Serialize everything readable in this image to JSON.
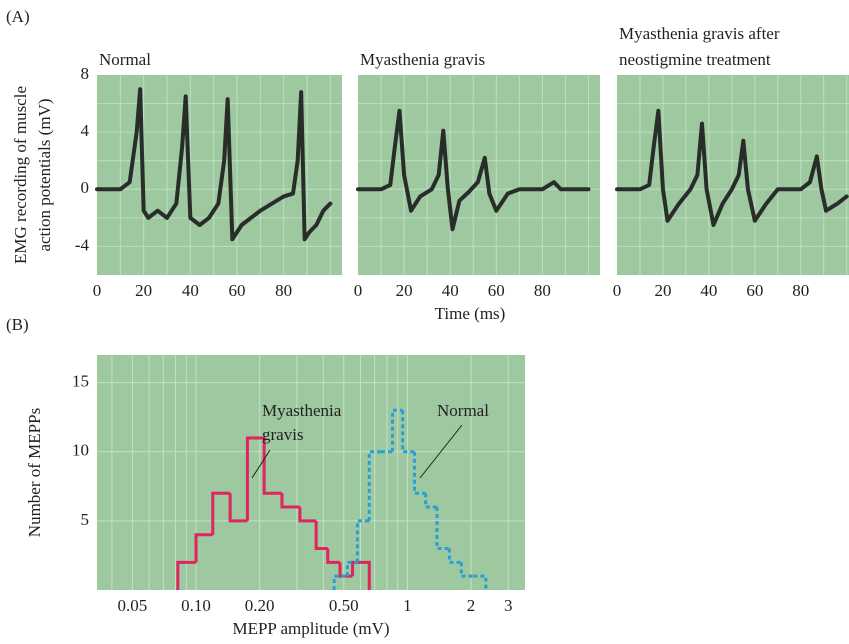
{
  "panel_labels": [
    "(A)",
    "(B)"
  ],
  "chart_data": [
    {
      "type": "line",
      "title": "Normal",
      "y_label": [
        "EMG recording of muscle",
        "action potentials (mV)"
      ],
      "background": "#9dc8a0",
      "grid_color": "#bfdfc1",
      "xlim": [
        0,
        105
      ],
      "ylim": [
        -6,
        8
      ],
      "xticks": [
        0,
        20,
        40,
        60,
        80
      ],
      "yticks": [
        -4,
        0,
        4,
        8
      ],
      "xgrid": [
        10,
        20,
        30,
        40,
        50,
        60,
        70,
        80,
        90,
        100
      ],
      "ygrid": [
        -4,
        -2,
        0,
        2,
        4,
        6
      ],
      "x": [
        0,
        5,
        10,
        14,
        17,
        18.5,
        20,
        22,
        26,
        30,
        34,
        36.5,
        38,
        40,
        44,
        48,
        52,
        54.5,
        56,
        58,
        62,
        70,
        80,
        84,
        86,
        87.5,
        89,
        91,
        94,
        97,
        100
      ],
      "series": [
        {
          "color": "#1c1c1c",
          "values": [
            0,
            0,
            0,
            0.5,
            4,
            7,
            -1.5,
            -2,
            -1.5,
            -2,
            -1,
            3,
            6.5,
            -2,
            -2.5,
            -2,
            -1,
            2,
            6.3,
            -3.5,
            -2.5,
            -1.5,
            -0.5,
            -0.3,
            2,
            6.8,
            -3.5,
            -3,
            -2.5,
            -1.5,
            -1
          ]
        }
      ]
    },
    {
      "type": "line",
      "title": "Myasthenia gravis",
      "x_label": "Time (ms)",
      "background": "#9dc8a0",
      "grid_color": "#bfdfc1",
      "xlim": [
        0,
        105
      ],
      "ylim": [
        -6,
        8
      ],
      "xticks": [
        0,
        20,
        40,
        60,
        80
      ],
      "xgrid": [
        10,
        20,
        30,
        40,
        50,
        60,
        70,
        80,
        90,
        100
      ],
      "ygrid": [
        -4,
        -2,
        0,
        2,
        4,
        6
      ],
      "x": [
        0,
        5,
        10,
        14,
        16,
        18,
        20,
        23,
        27,
        32,
        35,
        37,
        39,
        41,
        44,
        48,
        52,
        55,
        57,
        60,
        65,
        70,
        80,
        85,
        88,
        92,
        100
      ],
      "series": [
        {
          "color": "#1c1c1c",
          "values": [
            0,
            0,
            0,
            0.3,
            3,
            5.5,
            1,
            -1.5,
            -0.5,
            0,
            1,
            4.1,
            0,
            -2.8,
            -0.8,
            -0.2,
            0.5,
            2.2,
            -0.3,
            -1.5,
            -0.3,
            0,
            0,
            0.5,
            0,
            0,
            0
          ]
        }
      ]
    },
    {
      "type": "line",
      "title": [
        "Myasthenia gravis after",
        "neostigmine treatment"
      ],
      "background": "#9dc8a0",
      "grid_color": "#bfdfc1",
      "xlim": [
        0,
        101
      ],
      "ylim": [
        -6,
        8
      ],
      "xticks": [
        0,
        20,
        40,
        60,
        80
      ],
      "xgrid": [
        10,
        20,
        30,
        40,
        50,
        60,
        70,
        80,
        90,
        100
      ],
      "ygrid": [
        -4,
        -2,
        0,
        2,
        4,
        6
      ],
      "x": [
        0,
        5,
        10,
        14,
        16,
        18,
        20,
        22,
        27,
        32,
        35,
        37,
        39,
        42,
        46,
        50,
        53,
        55,
        57,
        60,
        65,
        70,
        80,
        84,
        87,
        89,
        91,
        96,
        100
      ],
      "series": [
        {
          "color": "#1c1c1c",
          "values": [
            0,
            0,
            0,
            0.3,
            3,
            5.5,
            0,
            -2.2,
            -1,
            0,
            1,
            4.6,
            0,
            -2.5,
            -1,
            0,
            1,
            3.4,
            0,
            -2.2,
            -1,
            0,
            0,
            0.5,
            2.3,
            0,
            -1.5,
            -1,
            -0.5
          ]
        }
      ]
    },
    {
      "type": "histogram",
      "x_label": "MEPP amplitude (mV)",
      "y_label": "Number of MEPPs",
      "background": "#9dc8a0",
      "grid_color": "#c4e2c5",
      "xscale": "log",
      "xlim": [
        0.034,
        3.6
      ],
      "ylim": [
        0,
        17
      ],
      "xticks": [
        0.05,
        {
          "value": 0.1,
          "label": "0.10"
        },
        {
          "value": 0.2,
          "label": "0.20"
        },
        {
          "value": 0.5,
          "label": "0.50"
        },
        1,
        2,
        3
      ],
      "yticks": [
        5,
        10,
        15
      ],
      "xgrid": [
        0.04,
        0.05,
        0.06,
        0.07,
        0.08,
        0.09,
        0.1,
        0.2,
        0.3,
        0.4,
        0.5,
        0.6,
        0.7,
        0.8,
        0.9,
        1,
        2,
        3
      ],
      "ygrid": [
        5,
        10,
        15
      ],
      "series": [
        {
          "color": "#e0245e",
          "style": "solid",
          "bins": [
            0.082,
            0.1,
            0.12,
            0.145,
            0.175,
            0.21,
            0.255,
            0.31,
            0.37,
            0.42,
            0.48,
            0.55,
            0.66
          ],
          "values": [
            2,
            4,
            7,
            5,
            11,
            7,
            6,
            5,
            3,
            2,
            1,
            2
          ]
        },
        {
          "color": "#2a9fd6",
          "style": "dotted",
          "bins": [
            0.45,
            0.52,
            0.58,
            0.66,
            0.75,
            0.85,
            0.95,
            1.08,
            1.22,
            1.38,
            1.58,
            1.8,
            2.05,
            2.35
          ],
          "values": [
            1,
            2,
            5,
            10,
            10,
            13,
            10,
            7,
            6,
            3,
            2,
            1,
            1
          ]
        }
      ],
      "annotations": [
        {
          "lines": [
            "Myasthenia",
            "gravis"
          ]
        },
        {
          "lines": [
            "Normal"
          ]
        }
      ]
    }
  ]
}
